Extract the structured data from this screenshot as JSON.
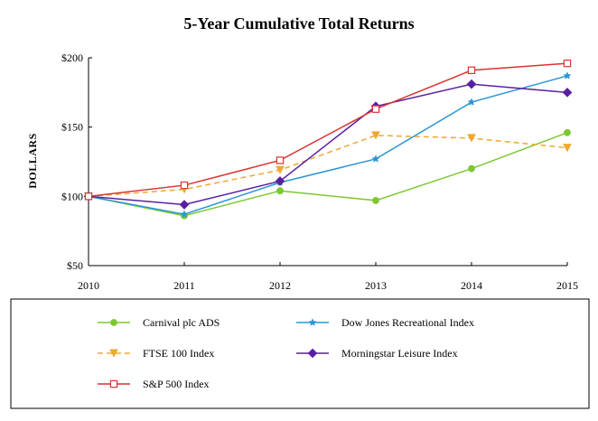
{
  "chart_data": {
    "type": "line",
    "title": "5-Year Cumulative Total Returns",
    "xlabel": "",
    "ylabel": "DOLLARS",
    "x": [
      "2010",
      "2011",
      "2012",
      "2013",
      "2014",
      "2015"
    ],
    "ylim": [
      50,
      200
    ],
    "yticks": [
      50,
      100,
      150,
      200
    ],
    "ytick_labels": [
      "$50",
      "$100",
      "$150",
      "$200"
    ],
    "grid": false,
    "legend_position": "bottom",
    "series": [
      {
        "name": "Carnival plc ADS",
        "values": [
          100,
          86,
          104,
          97,
          120,
          146
        ],
        "color": "#7dc832",
        "marker": "circle",
        "dashed": false
      },
      {
        "name": "Dow Jones Recreational Index",
        "values": [
          100,
          87,
          110,
          127,
          168,
          187
        ],
        "color": "#2b95d6",
        "marker": "star",
        "dashed": false
      },
      {
        "name": "FTSE 100 Index",
        "values": [
          100,
          105,
          119,
          144,
          142,
          135
        ],
        "color": "#f0a830",
        "marker": "triangle-down",
        "dashed": true
      },
      {
        "name": "Morningstar Leisure Index",
        "values": [
          100,
          94,
          111,
          165,
          181,
          175
        ],
        "color": "#5a1fa0",
        "marker": "diamond",
        "dashed": false
      },
      {
        "name": "S&P 500 Index",
        "values": [
          100,
          108,
          126,
          163,
          191,
          196
        ],
        "color": "#d93434",
        "marker": "square-open",
        "dashed": false
      }
    ]
  }
}
